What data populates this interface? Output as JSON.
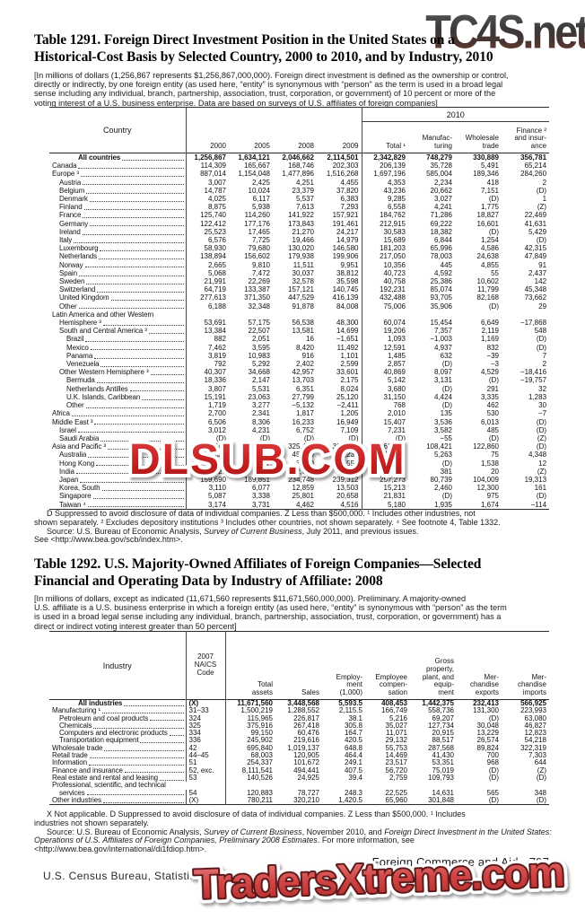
{
  "watermarks": {
    "top": "TC4S.net",
    "middle": "DLSUB.COM",
    "bottom": "TradersXtreme.com"
  },
  "page": {
    "footer_section": "Foreign Commerce and Aid",
    "page_number": "797",
    "footer_left": "U.S. Census Bureau, Statistical Abstract of the United States: 2012"
  },
  "table1291": {
    "title": "Table 1291. Foreign Direct Investment Position in the United States on a\nHistorical-Cost Basis by Selected Country, 2000 to 2010, and by Industry, 2010",
    "note": "[In millions of dollars (1,256,867 represents $1,256,867,000,000). Foreign direct investment is defined as the ownership or control,\ndirectly or indirectly, by one foreign entity (as used here, “entity” is synonymous with “person” as the term is used in a broad legal\nsense including any individual, branch, partnership, association, trust, corporation, or government) of 10 percent or more of the\nvoting interest of a U.S. business enterprise. Data are based on surveys of U.S. affiliates of foreign companies]",
    "country_label": "Country",
    "group_2010": "2010",
    "columns": [
      "2000",
      "2005",
      "2008",
      "2009",
      "Total ¹",
      "Manufac-\nturing",
      "Wholesale\ntrade",
      "Finance ²\nand insur-\nance"
    ],
    "rows": [
      {
        "label": "All countries",
        "i": "t",
        "b": true,
        "v": [
          "1,256,867",
          "1,634,121",
          "2,046,662",
          "2,114,501",
          "2,342,829",
          "748,279",
          "330,889",
          "356,781"
        ]
      },
      {
        "label": "Canada",
        "i": 0,
        "v": [
          "114,309",
          "165,667",
          "168,746",
          "202,303",
          "206,139",
          "35,728",
          "5,491",
          "65,214"
        ]
      },
      {
        "label": "Europe ³",
        "i": 0,
        "v": [
          "887,014",
          "1,154,048",
          "1,477,896",
          "1,516,268",
          "1,697,196",
          "585,004",
          "189,346",
          "284,260"
        ]
      },
      {
        "label": "Austria",
        "i": 1,
        "v": [
          "3,007",
          "2,425",
          "4,251",
          "4,455",
          "4,353",
          "2,234",
          "418",
          "2"
        ]
      },
      {
        "label": "Belgium",
        "i": 1,
        "v": [
          "14,787",
          "10,024",
          "23,379",
          "37,820",
          "43,236",
          "20,662",
          "7,151",
          "(D)"
        ]
      },
      {
        "label": "Denmark",
        "i": 1,
        "v": [
          "4,025",
          "6,117",
          "5,537",
          "6,383",
          "9,285",
          "3,027",
          "(D)",
          "1"
        ]
      },
      {
        "label": "Finland",
        "i": 1,
        "v": [
          "8,875",
          "5,938",
          "7,613",
          "7,293",
          "6,558",
          "4,241",
          "1,775",
          "(Z)"
        ]
      },
      {
        "label": "France",
        "i": 1,
        "v": [
          "125,740",
          "114,260",
          "141,922",
          "157,921",
          "184,762",
          "71,286",
          "18,827",
          "22,469"
        ]
      },
      {
        "label": "Germany",
        "i": 1,
        "v": [
          "122,412",
          "177,176",
          "173,843",
          "191,461",
          "212,915",
          "69,222",
          "16,601",
          "41,631"
        ]
      },
      {
        "label": "Ireland",
        "i": 1,
        "v": [
          "25,523",
          "17,465",
          "21,270",
          "24,217",
          "30,583",
          "18,382",
          "(D)",
          "5,429"
        ]
      },
      {
        "label": "Italy",
        "i": 1,
        "v": [
          "6,576",
          "7,725",
          "19,466",
          "14,979",
          "15,689",
          "6,844",
          "1,254",
          "(D)"
        ]
      },
      {
        "label": "Luxembourg",
        "i": 1,
        "v": [
          "58,930",
          "79,680",
          "130,020",
          "146,580",
          "181,203",
          "65,996",
          "4,586",
          "42,315"
        ]
      },
      {
        "label": "Netherlands",
        "i": 1,
        "v": [
          "138,894",
          "156,602",
          "179,938",
          "199,906",
          "217,050",
          "78,003",
          "24,638",
          "47,849"
        ]
      },
      {
        "label": "Norway",
        "i": 1,
        "v": [
          "2,665",
          "9,810",
          "11,511",
          "9,951",
          "10,356",
          "445",
          "4,855",
          "91"
        ]
      },
      {
        "label": "Spain",
        "i": 1,
        "v": [
          "5,068",
          "7,472",
          "30,037",
          "38,812",
          "40,723",
          "4,592",
          "55",
          "2,437"
        ]
      },
      {
        "label": "Sweden",
        "i": 1,
        "v": [
          "21,991",
          "22,269",
          "32,578",
          "35,598",
          "40,758",
          "25,386",
          "10,602",
          "142"
        ]
      },
      {
        "label": "Switzerland",
        "i": 1,
        "v": [
          "64,719",
          "133,387",
          "157,121",
          "140,745",
          "192,231",
          "85,074",
          "11,799",
          "45,348"
        ]
      },
      {
        "label": "United Kingdom",
        "i": 1,
        "v": [
          "277,613",
          "371,350",
          "447,529",
          "416,139",
          "432,488",
          "93,705",
          "82,168",
          "73,662"
        ]
      },
      {
        "label": "Other",
        "i": 1,
        "v": [
          "6,188",
          "32,348",
          "91,878",
          "84,008",
          "75,006",
          "35,906",
          "(D)",
          "29"
        ]
      },
      {
        "label": "Latin America and other Western",
        "i": 0,
        "nl": true
      },
      {
        "label": "Hemisphere ³",
        "i": 1,
        "v": [
          "53,691",
          "57,175",
          "56,538",
          "48,300",
          "60,074",
          "15,454",
          "6,649",
          "−17,868"
        ]
      },
      {
        "label": "South and Central America ³",
        "i": 1,
        "v": [
          "13,384",
          "22,507",
          "13,581",
          "14,699",
          "19,206",
          "7,357",
          "2,119",
          "548"
        ]
      },
      {
        "label": "Brazil",
        "i": 2,
        "v": [
          "882",
          "2,051",
          "16",
          "−1,651",
          "1,093",
          "−1,003",
          "1,169",
          "(D)"
        ]
      },
      {
        "label": "Mexico",
        "i": 2,
        "v": [
          "7,462",
          "3,595",
          "8,420",
          "11,492",
          "12,591",
          "4,937",
          "832",
          "(D)"
        ]
      },
      {
        "label": "Panama",
        "i": 2,
        "v": [
          "3,819",
          "10,983",
          "916",
          "1,101",
          "1,485",
          "632",
          "−39",
          "7"
        ]
      },
      {
        "label": "Venezuela",
        "i": 2,
        "v": [
          "792",
          "5,292",
          "2,402",
          "2,599",
          "2,857",
          "(D)",
          "−3",
          "2"
        ]
      },
      {
        "label": "Other Western Hemisphere ³",
        "i": 1,
        "v": [
          "40,307",
          "34,668",
          "42,957",
          "33,601",
          "40,869",
          "8,097",
          "4,529",
          "−18,416"
        ]
      },
      {
        "label": "Bermuda",
        "i": 2,
        "v": [
          "18,336",
          "2,147",
          "13,703",
          "2,175",
          "5,142",
          "3,131",
          "(D)",
          "−19,757"
        ]
      },
      {
        "label": "Netherlands Antilles",
        "i": 2,
        "v": [
          "3,807",
          "5,531",
          "6,351",
          "8,024",
          "3,680",
          "(D)",
          "291",
          "32"
        ]
      },
      {
        "label": "U.K. Islands, Caribbean",
        "i": 2,
        "v": [
          "15,191",
          "23,063",
          "27,799",
          "25,120",
          "31,150",
          "4,424",
          "3,335",
          "1,283"
        ]
      },
      {
        "label": "Other",
        "i": 2,
        "v": [
          "1,719",
          "3,277",
          "−5,132",
          "−2,411",
          "768",
          "(D)",
          "462",
          "30"
        ]
      },
      {
        "label": "Africa",
        "i": 0,
        "v": [
          "2,700",
          "2,341",
          "1,817",
          "1,205",
          "2,010",
          "135",
          "530",
          "−7"
        ]
      },
      {
        "label": "Middle East ³",
        "i": 0,
        "v": [
          "6,506",
          "8,306",
          "16,233",
          "16,949",
          "15,407",
          "3,536",
          "6,013",
          "(D)"
        ]
      },
      {
        "label": "Israel",
        "i": 1,
        "v": [
          "3,012",
          "4,231",
          "6,752",
          "7,109",
          "7,231",
          "3,582",
          "485",
          "(D)"
        ]
      },
      {
        "label": "Saudi Arabia",
        "i": 1,
        "v": [
          "(D)",
          "(D)",
          "(D)",
          "(D)",
          "(D)",
          "−55",
          "(D)",
          "(Z)"
        ]
      },
      {
        "label": "Asia and Pacific ³",
        "i": 0,
        "v": [
          "192,647",
          "246,584",
          "325,432",
          "329,476",
          "362,003",
          "108,421",
          "122,860",
          "(D)"
        ]
      },
      {
        "label": "Australia",
        "i": 1,
        "v": [
          "21,251",
          "33,627",
          "45,169",
          "50,239",
          "48,514",
          "5,263",
          "75",
          "4,348"
        ]
      },
      {
        "label": "Hong Kong",
        "i": 1,
        "v": [
          "1,493",
          "2,717",
          "3,289",
          "4,559",
          "3,942",
          "(D)",
          "1,538",
          "12"
        ]
      },
      {
        "label": "India",
        "i": 1,
        "v": [
          "227",
          "1,437",
          "2,625",
          "2,375",
          "3,344",
          "381",
          "20",
          "(Z)"
        ]
      },
      {
        "label": "Japan",
        "i": 1,
        "v": [
          "159,690",
          "189,851",
          "234,748",
          "239,312",
          "257,273",
          "80,739",
          "104,009",
          "19,313"
        ]
      },
      {
        "label": "Korea, South",
        "i": 1,
        "v": [
          "3,110",
          "6,077",
          "12,859",
          "13,503",
          "15,213",
          "2,460",
          "12,300",
          "161"
        ]
      },
      {
        "label": "Singapore",
        "i": 1,
        "v": [
          "5,087",
          "3,338",
          "25,801",
          "20,658",
          "21,831",
          "(D)",
          "975",
          "(D)"
        ]
      },
      {
        "label": "Taiwan ⁴",
        "i": 1,
        "v": [
          "3,174",
          "3,731",
          "4,462",
          "4,516",
          "5,180",
          "1,935",
          "1,674",
          "−114"
        ]
      }
    ],
    "footnote": "D Suppressed to avoid disclosure of data of individual companies. Z Less than $500,000. ¹ Includes other industries, not\nshown separately. ² Excludes depository institutions ³ Includes other countries, not shown separately. ⁴ See footnote 4, Table 1332.",
    "source_prefix": "Source: U.S. Bureau of Economic Analysis, ",
    "source_italic": "Survey of Current Business",
    "source_suffix": ", July 2011, and previous issues.",
    "see_line": "See <http://www.bea.gov/scb/index.htm>."
  },
  "table1292": {
    "title": "Table 1292. U.S. Majority-Owned Affiliates of Foreign Companies—Selected\nFinancial and Operating Data by Industry of Affiliate: 2008",
    "note": "[In millions of dollars, except as indicated (11,671,560 represents $11,671,560,000,000). Preliminary. A majority-owned\nU.S. affiliate is a U.S. business enterprise in which a foreign entity (as used here, “entity” is synonymous with “person” as the term\nis used in a broad legal sense including any individual, branch, partnership, association, trust, corporation, or government) has a\ndirect or indirect voting interest greater than 50 percent]",
    "industry_label": "Industry",
    "naics_label": "2007\nNAICS\nCode",
    "columns": [
      "Total\nassets",
      "Sales",
      "Employ-\nment\n(1,000)",
      "Employee\ncompen-\nsation",
      "Gross\nproperty,\nplant, and\nequip-\nment",
      "Mer-\nchandise\nexports",
      "Mer-\nchandise\nimports"
    ],
    "rows": [
      {
        "label": "All industries",
        "i": "t",
        "b": true,
        "code": "(X)",
        "v": [
          "11,671,560",
          "3,448,568",
          "5,593.5",
          "408,453",
          "1,442,375",
          "232,413",
          "566,925"
        ]
      },
      {
        "label": "Manufacturing ¹",
        "i": 0,
        "code": "31–33",
        "v": [
          "1,500,219",
          "1,288,552",
          "2,115.5",
          "166,749",
          "558,736",
          "131,300",
          "223,993"
        ]
      },
      {
        "label": "Petroleum and coal products",
        "i": 1,
        "code": "324",
        "v": [
          "115,965",
          "226,817",
          "38.1",
          "5,216",
          "69,207",
          "(D)",
          "63,080"
        ]
      },
      {
        "label": "Chemicals",
        "i": 1,
        "code": "325",
        "v": [
          "375,916",
          "267,418",
          "305.8",
          "35,027",
          "127,734",
          "30,048",
          "46,827"
        ]
      },
      {
        "label": "Computers and electronic products",
        "i": 1,
        "code": "334",
        "v": [
          "99,150",
          "60,476",
          "164.7",
          "11,071",
          "20,915",
          "13,229",
          "12,823"
        ]
      },
      {
        "label": "Transportation equipment",
        "i": 1,
        "code": "336",
        "v": [
          "245,902",
          "219,616",
          "420.5",
          "29,132",
          "88,517",
          "26,574",
          "54,218"
        ]
      },
      {
        "label": "Wholesale trade",
        "i": 0,
        "code": "42",
        "v": [
          "695,840",
          "1,019,137",
          "648.8",
          "55,753",
          "287,568",
          "89,824",
          "322,319"
        ]
      },
      {
        "label": "Retail trade",
        "i": 0,
        "code": "44–45",
        "v": [
          "68,003",
          "120,905",
          "464.4",
          "14,469",
          "41,430",
          "700",
          "7,303"
        ]
      },
      {
        "label": "Information",
        "i": 0,
        "code": "51",
        "v": [
          "254,337",
          "101,672",
          "249.1",
          "23,517",
          "53,351",
          "968",
          "644"
        ]
      },
      {
        "label": "Finance and insurance",
        "i": 0,
        "code": "52, exc.",
        "v": [
          "8,111,541",
          "494,441",
          "407.5",
          "56,720",
          "75,019",
          "(D)",
          "(Z)"
        ]
      },
      {
        "label": "Real estate and rental and leasing",
        "i": 0,
        "code": "53",
        "v": [
          "140,526",
          "24,925",
          "39.4",
          "2,759",
          "109,793",
          "(D)",
          "(D)"
        ]
      },
      {
        "label": "Professional, scientific, and technical",
        "i": 0,
        "nl": true,
        "span2": true
      },
      {
        "label": "services",
        "i": 1,
        "code": "54",
        "v": [
          "120,883",
          "78,727",
          "248.3",
          "22,525",
          "14,631",
          "565",
          "348"
        ]
      },
      {
        "label": "Other industries",
        "i": 0,
        "code": "(X)",
        "v": [
          "780,211",
          "320,210",
          "1,420.5",
          "65,960",
          "301,848",
          "(D)",
          "(D)"
        ]
      }
    ],
    "footnote": "X Not applicable. D Suppressed to avoid disclosure of data of individual companies. Z Less than $500,000. ¹ Includes\nindustries not shown separately.",
    "source_prefix": "Source: U.S. Bureau of Economic Analysis, ",
    "source_italic1": "Survey of Current Business",
    "source_mid": ", November 2010, and ",
    "source_italic2": "Foreign Direct Investment in the United States: Operations of U.S. Affiliates of Foreign Companies, Preliminary 2008 Estimates",
    "source_suffix": ". For more information, see <http://www.bea.gov/international/di1fdiop.htm>."
  }
}
